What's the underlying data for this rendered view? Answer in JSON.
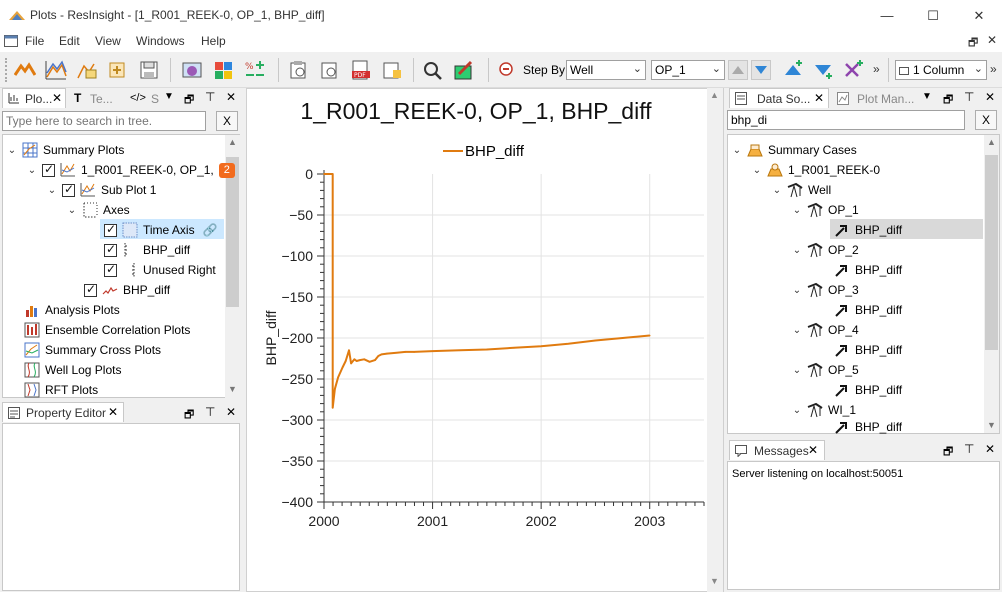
{
  "window": {
    "title": "Plots - ResInsight - [1_R001_REEK-0, OP_1, BHP_diff]",
    "minimize": "—",
    "maximize": "☐",
    "close": "✕"
  },
  "menu": [
    "File",
    "Edit",
    "View",
    "Windows",
    "Help"
  ],
  "toolbar": {
    "step_by_label": "Step By",
    "step_by_value": "Well",
    "well_value": "OP_1",
    "layout_value": "1 Column",
    "overflow": "»"
  },
  "project_tree": {
    "tabs": [
      "Plo...",
      "Te...",
      "S"
    ],
    "search_placeholder": "Type here to search in tree.",
    "clear_label": "X",
    "items": [
      {
        "label": "Summary Plots"
      },
      {
        "label": "1_R001_REEK-0, OP_1,",
        "badge": "2"
      },
      {
        "label": "Sub Plot 1"
      },
      {
        "label": "Axes"
      },
      {
        "label": "Time Axis"
      },
      {
        "label": "BHP_diff"
      },
      {
        "label": "Unused Right"
      },
      {
        "label": "BHP_diff"
      },
      {
        "label": "Analysis Plots"
      },
      {
        "label": "Ensemble Correlation Plots"
      },
      {
        "label": "Summary Cross Plots"
      },
      {
        "label": "Well Log Plots"
      },
      {
        "label": "RFT Plots"
      }
    ]
  },
  "property_editor": {
    "title": "Property Editor"
  },
  "data_sources": {
    "tabs": [
      "Data So...",
      "Plot Man..."
    ],
    "search_value": "bhp_di",
    "clear_label": "X",
    "items": [
      {
        "label": "Summary Cases"
      },
      {
        "label": "1_R001_REEK-0"
      },
      {
        "label": "Well"
      },
      {
        "label": "OP_1"
      },
      {
        "label": "BHP_diff"
      },
      {
        "label": "OP_2"
      },
      {
        "label": "BHP_diff"
      },
      {
        "label": "OP_3"
      },
      {
        "label": "BHP_diff"
      },
      {
        "label": "OP_4"
      },
      {
        "label": "BHP_diff"
      },
      {
        "label": "OP_5"
      },
      {
        "label": "BHP_diff"
      },
      {
        "label": "WI_1"
      },
      {
        "label": "BHP_diff"
      }
    ]
  },
  "messages": {
    "title": "Messages",
    "text": "Server listening on localhost:50051"
  },
  "colors": {
    "series": "#e07b10",
    "selection": "#cce8ff",
    "badge": "#f26b1d"
  },
  "chart_data": {
    "type": "line",
    "title": "1_R001_REEK-0, OP_1, BHP_diff",
    "ylabel": "BHP_diff",
    "xlabel": "",
    "xlim": [
      2000.0,
      2003.5
    ],
    "ylim": [
      -400,
      0
    ],
    "xticks": [
      "2000",
      "2001",
      "2002",
      "2003"
    ],
    "yticks": [
      "0",
      "−50",
      "−100",
      "−150",
      "−200",
      "−250",
      "−300",
      "−350",
      "−400"
    ],
    "grid": true,
    "legend": "top-center",
    "series": [
      {
        "name": "BHP_diff",
        "x": [
          2000.0,
          2000.08,
          2000.08,
          2000.1,
          2000.13,
          2000.17,
          2000.2,
          2000.23,
          2000.25,
          2000.28,
          2000.3,
          2000.33,
          2000.37,
          2000.42,
          2000.47,
          2000.5,
          2000.53,
          2000.58,
          2000.67,
          2000.75,
          2000.83,
          2001.0,
          2001.25,
          2001.5,
          2001.75,
          2002.0,
          2002.25,
          2002.5,
          2002.75,
          2003.0
        ],
        "y": [
          0,
          0,
          -285,
          -262,
          -248,
          -236,
          -228,
          -215,
          -231,
          -226,
          -228,
          -227,
          -226,
          -229,
          -227,
          -222,
          -220,
          -219,
          -218,
          -217,
          -217,
          -216,
          -215,
          -214,
          -212,
          -210,
          -207,
          -203,
          -200,
          -197
        ]
      }
    ]
  }
}
